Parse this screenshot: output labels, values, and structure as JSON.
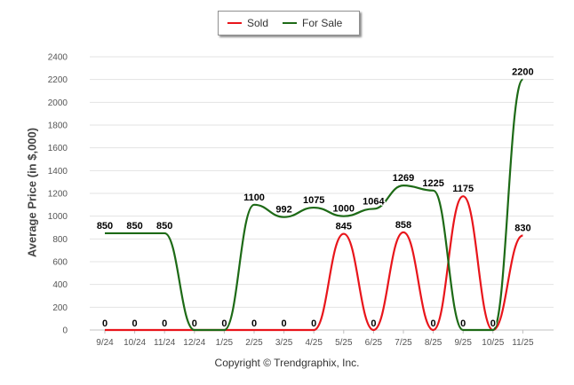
{
  "legend": {
    "items": [
      {
        "label": "Sold",
        "color": "#e8151b"
      },
      {
        "label": "For Sale",
        "color": "#1d6a16"
      }
    ]
  },
  "footer": "Copyright © Trendgraphix, Inc.",
  "chart_data": {
    "type": "line",
    "categories": [
      "9/24",
      "10/24",
      "11/24",
      "12/24",
      "1/25",
      "2/25",
      "3/25",
      "4/25",
      "5/25",
      "6/25",
      "7/25",
      "8/25",
      "9/25",
      "10/25",
      "11/25"
    ],
    "series": [
      {
        "name": "Sold",
        "color": "#e8151b",
        "values": [
          0,
          0,
          0,
          0,
          0,
          0,
          0,
          0,
          845,
          0,
          858,
          0,
          1175,
          0,
          830
        ],
        "labels": [
          "0",
          "0",
          "0",
          "0",
          "0",
          "0",
          "0",
          "0",
          "845",
          "0",
          "858",
          "0",
          "1175",
          "0",
          "830"
        ]
      },
      {
        "name": "For Sale",
        "color": "#1d6a16",
        "values": [
          850,
          850,
          850,
          0,
          0,
          1100,
          992,
          1075,
          1000,
          1064,
          1269,
          1225,
          0,
          0,
          2200
        ],
        "labels": [
          "850",
          "850",
          "850",
          "0",
          "0",
          "1100",
          "992",
          "1075",
          "1000",
          "1064",
          "1269",
          "1225",
          "0",
          "0",
          "2200"
        ]
      }
    ],
    "ylabel": "Average Price (in $,000)",
    "ylim": [
      0,
      2400
    ],
    "yticks": [
      "0",
      "200",
      "400",
      "600",
      "800",
      "1000",
      "1200",
      "1400",
      "1600",
      "1800",
      "2000",
      "2200",
      "2400"
    ],
    "grid": true,
    "legend_position": "top"
  }
}
